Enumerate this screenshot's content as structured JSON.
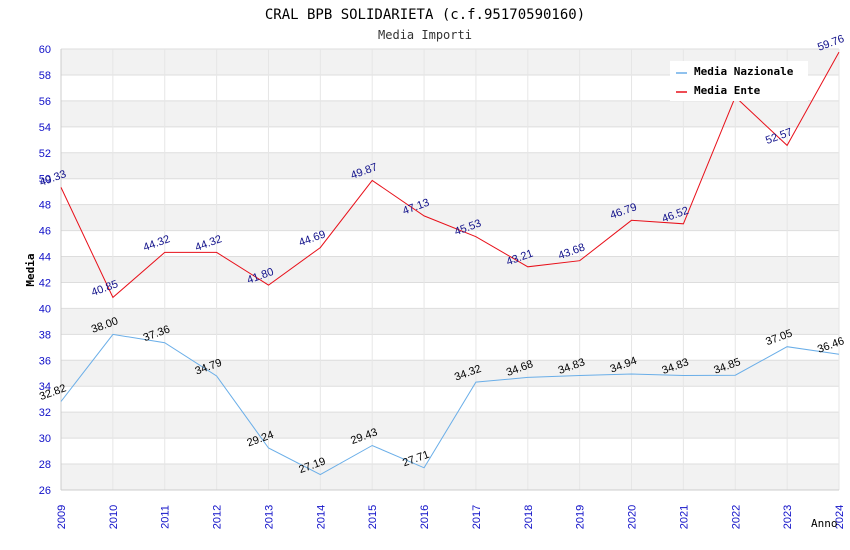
{
  "chart_data": {
    "type": "line",
    "title": "CRAL BPB SOLIDARIETA (c.f.95170590160)",
    "subtitle": "Media Importi",
    "xlabel": "Anno",
    "ylabel": "Media",
    "ylim": [
      26,
      60
    ],
    "ytick_step": 2,
    "categories": [
      "2009",
      "2010",
      "2011",
      "2012",
      "2013",
      "2014",
      "2015",
      "2016",
      "2017",
      "2018",
      "2019",
      "2020",
      "2021",
      "2022",
      "2023",
      "2024"
    ],
    "series": [
      {
        "name": "Media Nazionale",
        "color": "#6aaee8",
        "label_color": "#000000",
        "values": [
          32.82,
          38.0,
          37.36,
          34.79,
          29.24,
          27.19,
          29.43,
          27.71,
          34.32,
          34.68,
          34.83,
          34.94,
          34.83,
          34.85,
          37.05,
          36.46
        ],
        "labels": [
          "32.82",
          "38.00",
          "37.36",
          "34.79",
          "29.24",
          "27.19",
          "29.43",
          "27.71",
          "34.32",
          "34.68",
          "34.83",
          "34.94",
          "34.83",
          "34.85",
          "37.05",
          "36.46"
        ]
      },
      {
        "name": "Media Ente",
        "color": "#e8101a",
        "label_color": "#10108a",
        "values": [
          49.33,
          40.85,
          44.32,
          44.32,
          41.8,
          44.69,
          49.87,
          47.13,
          45.53,
          43.21,
          43.68,
          46.79,
          46.52,
          56.31,
          52.57,
          59.76
        ],
        "labels": [
          "49.33",
          "40.85",
          "44.32",
          "44.32",
          "41.80",
          "44.69",
          "49.87",
          "47.13",
          "45.53",
          "43.21",
          "43.68",
          "46.79",
          "46.52",
          "",
          "52.57",
          "59.76"
        ]
      }
    ],
    "legend": "top-right",
    "grid": true
  }
}
